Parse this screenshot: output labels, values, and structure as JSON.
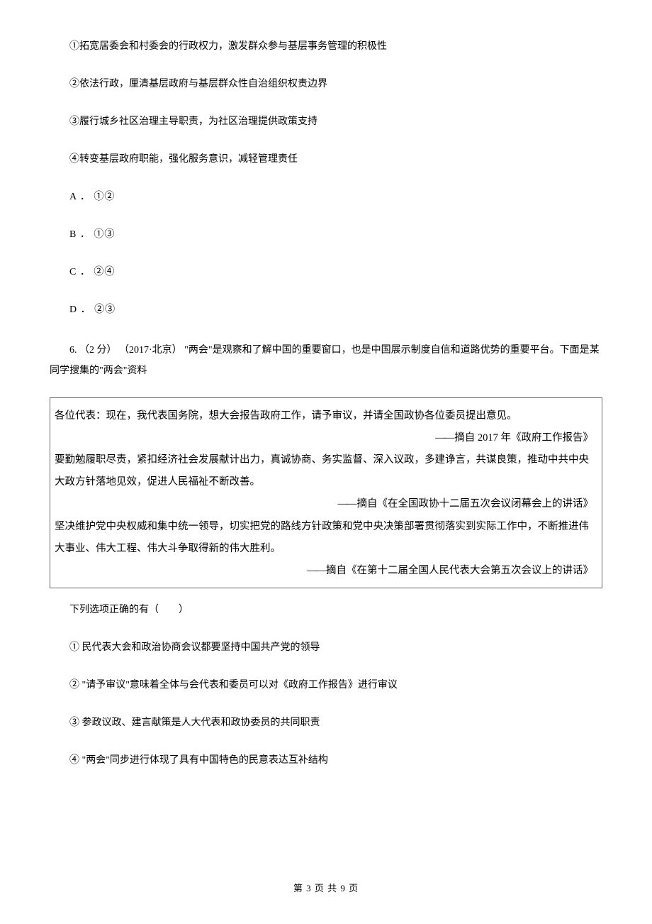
{
  "statements": {
    "s1": "①拓宽居委会和村委会的行政权力，激发群众参与基层事务管理的积极性",
    "s2": "②依法行政，厘清基层政府与基层群众性自治组织权责边界",
    "s3": "③履行城乡社区治理主导职责，为社区治理提供政策支持",
    "s4": "④转变基层政府职能，强化服务意识，减轻管理责任"
  },
  "options5": {
    "a": "A ． ①②",
    "b": "B ． ①③",
    "c": "C ． ②④",
    "d": "D ． ②③"
  },
  "q6": {
    "stem": "6.  （2 分） （2017·北京） \"两会\"是观察和了解中国的重要窗口，也是中国展示制度自信和道路优势的重要平台。下面是某同学搜集的\"两会\"资料"
  },
  "box": {
    "p1": "各位代表：现在，我代表国务院，想大会报告政府工作，请予审议，并请全国政协各位委员提出意见。",
    "src1_prefix": "——",
    "src1": "摘自 2017 年《政府工作报告》",
    "p2": "要勤勉履职尽责，紧扣经济社会发展献计出力，真诚协商、务实监督、深入议政，多建诤言，共谋良策，推动中共中央大政方针落地见效，促进人民福祉不断改善。",
    "src2_prefix": "——",
    "src2": "摘自《在全国政协十二届五次会议闭幕会上的讲话》",
    "p3": "坚决维护党中央权威和集中统一领导，切实把党的路线方针政策和党中央决策部署贯彻落实到实际工作中，不断推进伟大事业、伟大工程、伟大斗争取得新的伟大胜利。",
    "src3_prefix": "——",
    "src3": "摘自《在第十二届全国人民代表大会第五次会议上的讲话》"
  },
  "q6_prompt": "下列选项正确的有（　　）",
  "q6_statements": {
    "s1": "①  民代表大会和政治协商会议都要坚持中国共产党的领导",
    "s2": "②  \"请予审议\"意味着全体与会代表和委员可以对《政府工作报告》进行审议",
    "s3": "③  参政议政、建言献策是人大代表和政协委员的共同职责",
    "s4": "④  \"两会\"同步进行体现了具有中国特色的民意表达互补结构"
  },
  "footer": "第 3 页 共 9 页"
}
